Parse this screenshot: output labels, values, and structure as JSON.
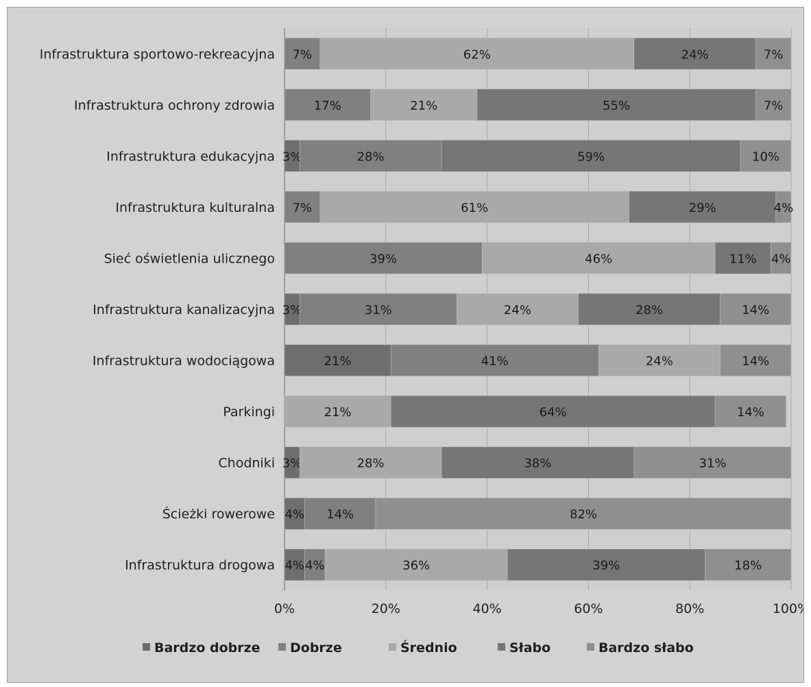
{
  "chart_data": {
    "type": "bar",
    "orientation": "horizontal",
    "stacked": "percent",
    "categories": [
      "Infrastruktura sportowo-rekreacyjna",
      "Infrastruktura ochrony zdrowia",
      "Infrastruktura edukacyjna",
      "Infrastruktura kulturalna",
      "Sieć oświetlenia ulicznego",
      "Infrastruktura kanalizacyjna",
      "Infrastruktura wodociągowa",
      "Parkingi",
      "Chodniki",
      "Ścieżki rowerowe",
      "Infrastruktura drogowa"
    ],
    "series": [
      {
        "name": "Bardzo dobrze",
        "color": "#6e6e6e",
        "values": [
          0,
          0,
          3,
          0,
          0,
          3,
          21,
          0,
          3,
          4,
          4
        ]
      },
      {
        "name": "Dobrze",
        "color": "#808080",
        "values": [
          7,
          17,
          28,
          7,
          39,
          31,
          41,
          0,
          0,
          14,
          4
        ]
      },
      {
        "name": "Średnio",
        "color": "#a9a9a9",
        "values": [
          62,
          21,
          0,
          61,
          46,
          24,
          24,
          21,
          28,
          0,
          36
        ]
      },
      {
        "name": "Słabo",
        "color": "#767676",
        "values": [
          24,
          55,
          59,
          29,
          11,
          28,
          0,
          64,
          38,
          0,
          39
        ]
      },
      {
        "name": "Bardzo słabo",
        "color": "#8f8f8f",
        "values": [
          7,
          7,
          10,
          4,
          4,
          14,
          14,
          14,
          31,
          82,
          18
        ]
      }
    ],
    "xlim": [
      0,
      100
    ],
    "xticks": [
      "0%",
      "20%",
      "40%",
      "60%",
      "80%",
      "100%"
    ],
    "value_suffix": "%",
    "grid": true,
    "legend": "bottom"
  }
}
